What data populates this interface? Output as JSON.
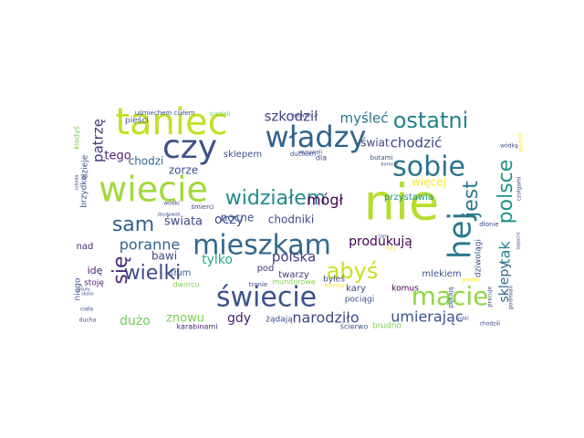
{
  "words": [
    {
      "text": "nie",
      "color": "#b5de2b"
    },
    {
      "text": "taniec",
      "color": "#c2df23"
    },
    {
      "text": "czy",
      "color": "#3b528b"
    },
    {
      "text": "władzy",
      "color": "#33638d"
    },
    {
      "text": "wiecie",
      "color": "#a0da39"
    },
    {
      "text": "sobie",
      "color": "#2c728e"
    },
    {
      "text": "ostatni",
      "color": "#27808e"
    },
    {
      "text": "mieszkam",
      "color": "#31688e"
    },
    {
      "text": "hej",
      "color": "#2a788e"
    },
    {
      "text": "świecie",
      "color": "#3b528b"
    },
    {
      "text": "macie",
      "color": "#8fd744"
    },
    {
      "text": "widziałem",
      "color": "#23898e"
    },
    {
      "text": "wielki",
      "color": "#3e4989"
    },
    {
      "text": "sam",
      "color": "#355f8d"
    },
    {
      "text": "jest",
      "color": "#2a788e"
    },
    {
      "text": "polsce",
      "color": "#21918c"
    },
    {
      "text": "abyś",
      "color": "#c8e020"
    },
    {
      "text": "się",
      "color": "#482878"
    },
    {
      "text": "poranne",
      "color": "#33638d"
    },
    {
      "text": "tak",
      "color": "#26828e"
    },
    {
      "text": "mógł",
      "color": "#440154"
    },
    {
      "text": "narodziło",
      "color": "#3e4989"
    },
    {
      "text": "umierając",
      "color": "#3b528b"
    },
    {
      "text": "patrzę",
      "color": "#46337e"
    },
    {
      "text": "szkodził",
      "color": "#414487"
    },
    {
      "text": "myśleć",
      "color": "#2c728e"
    },
    {
      "text": "chodzić",
      "color": "#3e4989"
    },
    {
      "text": "sklepy",
      "color": "#31688e"
    },
    {
      "text": "polska",
      "color": "#443983"
    },
    {
      "text": "produkują",
      "color": "#440154"
    },
    {
      "text": "oczy",
      "color": "#3e4989"
    },
    {
      "text": "świata",
      "color": "#3e4989"
    },
    {
      "text": "dużo",
      "color": "#6ece58"
    },
    {
      "text": "znowu",
      "color": "#7ad151"
    },
    {
      "text": "tylko",
      "color": "#25ab82"
    },
    {
      "text": "gdy",
      "color": "#481f70"
    },
    {
      "text": "świat",
      "color": "#414487"
    },
    {
      "text": "tego",
      "color": "#482475"
    },
    {
      "text": "chodzi",
      "color": "#31688e"
    },
    {
      "text": "bawi",
      "color": "#404688"
    },
    {
      "text": "chodniki",
      "color": "#3e4989"
    },
    {
      "text": "zorze",
      "color": "#3b528b"
    },
    {
      "text": "nocne",
      "color": "#3b528b"
    },
    {
      "text": "więcej",
      "color": "#fde725"
    },
    {
      "text": "przystawia",
      "color": "#21918c"
    },
    {
      "text": "sklepem",
      "color": "#3b528b"
    },
    {
      "text": "mlekiem",
      "color": "#3b528b"
    },
    {
      "text": "tłum",
      "color": "#355f8d"
    },
    {
      "text": "pod",
      "color": "#46337e"
    },
    {
      "text": "twarzy",
      "color": "#46337e"
    },
    {
      "text": "idę",
      "color": "#481a6c"
    },
    {
      "text": "nad",
      "color": "#472d7b"
    },
    {
      "text": "kary",
      "color": "#3e4989"
    },
    {
      "text": "komus",
      "color": "#440154"
    },
    {
      "text": "pociągi",
      "color": "#3b528b"
    },
    {
      "text": "brudno",
      "color": "#7ad151"
    },
    {
      "text": "żądają",
      "color": "#3e4989"
    },
    {
      "text": "ścierwo",
      "color": "#3b528b"
    },
    {
      "text": "karabinami",
      "color": "#482878"
    },
    {
      "text": "byłeś",
      "color": "#3e4989"
    },
    {
      "text": "pieści",
      "color": "#3b528b"
    },
    {
      "text": "uśmiechem",
      "color": "#3b528b"
    },
    {
      "text": "ciałem",
      "color": "#3b528b"
    },
    {
      "text": "siadali",
      "color": "#7ad151"
    },
    {
      "text": "zębami",
      "color": "#3e4989"
    },
    {
      "text": "wyrywali",
      "color": "#3b528b"
    },
    {
      "text": "butami",
      "color": "#3b528b"
    },
    {
      "text": "duchem",
      "color": "#3b528b"
    },
    {
      "text": "dla",
      "color": "#3e4989"
    },
    {
      "text": "śmierci",
      "color": "#3e4989"
    },
    {
      "text": "wódki",
      "color": "#3e4989"
    },
    {
      "text": "mundurowe",
      "color": "#7ad151"
    },
    {
      "text": "dworcu",
      "color": "#7ad151"
    },
    {
      "text": "tronie",
      "color": "#3e4989"
    },
    {
      "text": "kominy",
      "color": "#fde725"
    },
    {
      "text": "kiedyś",
      "color": "#7ad151"
    },
    {
      "text": "brzydko",
      "color": "#3b528b"
    },
    {
      "text": "dzieje",
      "color": "#3b528b"
    },
    {
      "text": "stoję",
      "color": "#481f70"
    },
    {
      "text": "niego",
      "color": "#3b528b"
    },
    {
      "text": "ciała",
      "color": "#3e4989"
    },
    {
      "text": "ducha",
      "color": "#3e4989"
    },
    {
      "text": "koronie",
      "color": "#3e4989"
    },
    {
      "text": "wódkę",
      "color": "#3e4989"
    },
    {
      "text": "jeździli",
      "color": "#fde725"
    },
    {
      "text": "szkoda",
      "color": "#3e4989"
    },
    {
      "text": "czołgami",
      "color": "#3e4989"
    },
    {
      "text": "dziwolągi",
      "color": "#3b528b"
    },
    {
      "text": "dłonie",
      "color": "#3e4989"
    },
    {
      "text": "sopocie",
      "color": "#3e4989"
    },
    {
      "text": "pękają",
      "color": "#3e4989"
    },
    {
      "text": "grodzić",
      "color": "#fde725"
    },
    {
      "text": "pracuje",
      "color": "#3e4989"
    },
    {
      "text": "podmiali",
      "color": "#3e4989"
    },
    {
      "text": "chodzili",
      "color": "#3e4989"
    },
    {
      "text": "robić",
      "color": "#3e4989"
    },
    {
      "text": "zbudowali",
      "color": "#3e4989"
    },
    {
      "text": "nazy",
      "color": "#fde725"
    },
    {
      "text": "psuły",
      "color": "#3e4989"
    },
    {
      "text": "skoro",
      "color": "#3e4989"
    },
    {
      "text": "tam",
      "color": "#3e4989"
    }
  ]
}
